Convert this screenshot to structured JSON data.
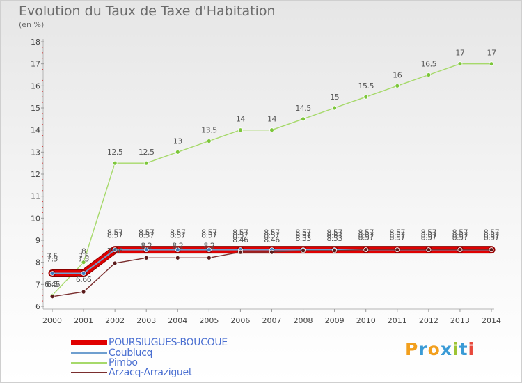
{
  "title": "Evolution du Taux de Taxe d'Habitation",
  "subtitle": "(en %)",
  "logo": {
    "text": "Proxiti",
    "letters": [
      "P",
      "r",
      "o",
      "x",
      "i",
      "t",
      "i"
    ],
    "colors": [
      "#f29f1d",
      "#3a9bd6",
      "#f29f1d",
      "#3a9bd6",
      "#9dc434",
      "#3a9bd6",
      "#e8483c"
    ]
  },
  "chart_data": {
    "type": "line",
    "title": "Evolution du Taux de Taxe d'Habitation",
    "ylabel": "(en %)",
    "xlabel": "",
    "x": [
      "2000",
      "2001",
      "2002",
      "2003",
      "2004",
      "2005",
      "2006",
      "2007",
      "2008",
      "2009",
      "2010",
      "2011",
      "2012",
      "2013",
      "2014"
    ],
    "ylim": [
      6,
      18
    ],
    "yticks": [
      "6",
      "7",
      "8",
      "9",
      "10",
      "11",
      "12",
      "13",
      "14",
      "15",
      "16",
      "17",
      "18"
    ],
    "grid": false,
    "legend_position": "bottom-left",
    "series": [
      {
        "name": "POURSIUGUES-BOUCOUE",
        "color": "#e00000",
        "marker_color": "#cc0000",
        "values": [
          7.5,
          7.5,
          8.57,
          8.57,
          8.57,
          8.57,
          8.57,
          8.57,
          8.57,
          8.57,
          8.57,
          8.57,
          8.57,
          8.57,
          8.57
        ],
        "labels": [
          "7.5",
          "7.5",
          "8.57",
          "8.57",
          "8.57",
          "8.57",
          "8.57",
          "8.57",
          "8.57",
          "8.57",
          "8.57",
          "8.57",
          "8.57",
          "8.57",
          "8.57"
        ]
      },
      {
        "name": "Coublucq",
        "color": "#6f9fcf",
        "marker_color": "#3d7fc1",
        "values": [
          7.5,
          7.5,
          8.57,
          8.57,
          8.57,
          8.57,
          8.57,
          8.57,
          8.57,
          8.57,
          8.57,
          8.57,
          8.57,
          8.57,
          8.57
        ],
        "labels": [
          "7.5",
          "7.5",
          "8.57",
          "8.57",
          "8.57",
          "8.57",
          "8.57",
          "8.57",
          "8.57",
          "8.57",
          "8.57",
          "8.57",
          "8.57",
          "8.57",
          "8.57"
        ]
      },
      {
        "name": "Pimbo",
        "color": "#a6d96a",
        "marker_color": "#7cc63a",
        "values": [
          6.5,
          8,
          12.5,
          12.5,
          13,
          13.5,
          14,
          14,
          14.5,
          15,
          15.5,
          16,
          16.5,
          17,
          17
        ],
        "labels": [
          "6.5",
          "8",
          "12.5",
          "12.5",
          "13",
          "13.5",
          "14",
          "14",
          "14.5",
          "15",
          "15.5",
          "16",
          "16.5",
          "17",
          "17"
        ]
      },
      {
        "name": "Arzacq-Arraziguet",
        "color": "#7a2e2e",
        "marker_color": "#5a1a1a",
        "values": [
          6.45,
          6.66,
          7.96,
          8.2,
          8.2,
          8.2,
          8.46,
          8.46,
          8.53,
          8.53,
          8.57,
          8.57,
          8.57,
          8.57,
          8.57
        ],
        "labels": [
          "6.45",
          "6.66",
          "7.96",
          "8.2",
          "8.2",
          "8.2",
          "8.46",
          "8.46",
          "8.53",
          "8.53",
          "8.57",
          "8.57",
          "8.57",
          "8.57",
          "8.57"
        ]
      }
    ]
  }
}
